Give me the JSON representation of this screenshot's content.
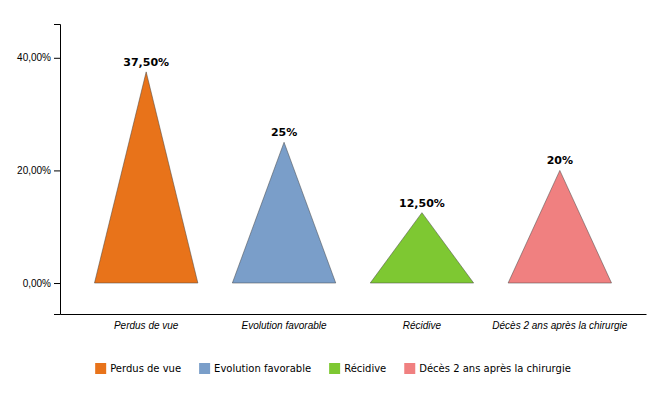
{
  "chart_data": {
    "type": "pyramid",
    "categories": [
      "Perdus de vue",
      "Evolution favorable",
      "Récidive",
      "Décès 2 ans après la chirurgie"
    ],
    "values": [
      37.5,
      25.0,
      12.5,
      20.0
    ],
    "value_labels": [
      "37,50%",
      "25%",
      "12,50%",
      "20%"
    ],
    "data_labels": true,
    "colors": [
      "#E8731A",
      "#7A9EC9",
      "#7EC832",
      "#F08080"
    ],
    "ylim": [
      -5.5,
      46
    ],
    "yticks": [
      {
        "value": 0,
        "label": "0,00%"
      },
      {
        "value": 20,
        "label": "20,00%"
      },
      {
        "value": 40,
        "label": "40,00%"
      }
    ],
    "grid": false,
    "legend": "bottom"
  }
}
